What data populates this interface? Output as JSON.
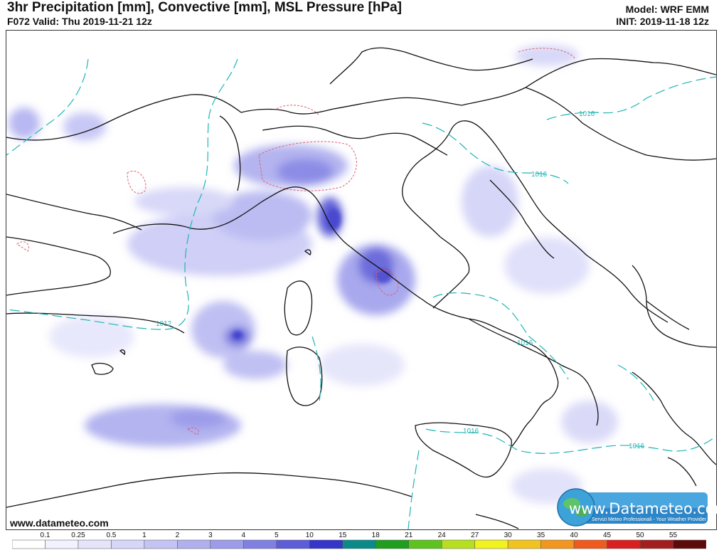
{
  "header": {
    "title": "3hr Precipitation [mm], Convective [mm], MSL Pressure [hPa]",
    "valid": "F072 Valid: Thu 2019-11-21 12z",
    "model": "Model: WRF EMM",
    "init": "INIT: 2019-11-18 12z"
  },
  "isobars": {
    "color": "#1fb5b5",
    "labels": [
      "1012",
      "1016",
      "1016",
      "1016",
      "1016",
      "1016"
    ]
  },
  "precip": {
    "stratiform_color": "#6f6fe0",
    "convective_color": "#e06070"
  },
  "footer": {
    "website": "www.datameteo.com"
  },
  "logo": {
    "name": "www.Datameteo.com",
    "tagline": "Servizi Meteo Professionali - Your Weather Provider"
  },
  "scale": {
    "labels": [
      "0.1",
      "0.25",
      "0.5",
      "1",
      "2",
      "3",
      "4",
      "5",
      "10",
      "15",
      "18",
      "21",
      "24",
      "27",
      "30",
      "35",
      "40",
      "45",
      "50",
      "55"
    ],
    "colors": [
      "#ffffff",
      "#f2f2ff",
      "#e4e4fb",
      "#d6d6f8",
      "#c4c4f4",
      "#b0b0ef",
      "#9c9cea",
      "#8080e2",
      "#5d5dd8",
      "#3535c9",
      "#0b8a8a",
      "#1f9e1f",
      "#5fc31f",
      "#b6e01f",
      "#f2f21f",
      "#f2c31f",
      "#f2961f",
      "#ef5a1f",
      "#d91f1f",
      "#a31f1f",
      "#5c0a0a"
    ]
  }
}
